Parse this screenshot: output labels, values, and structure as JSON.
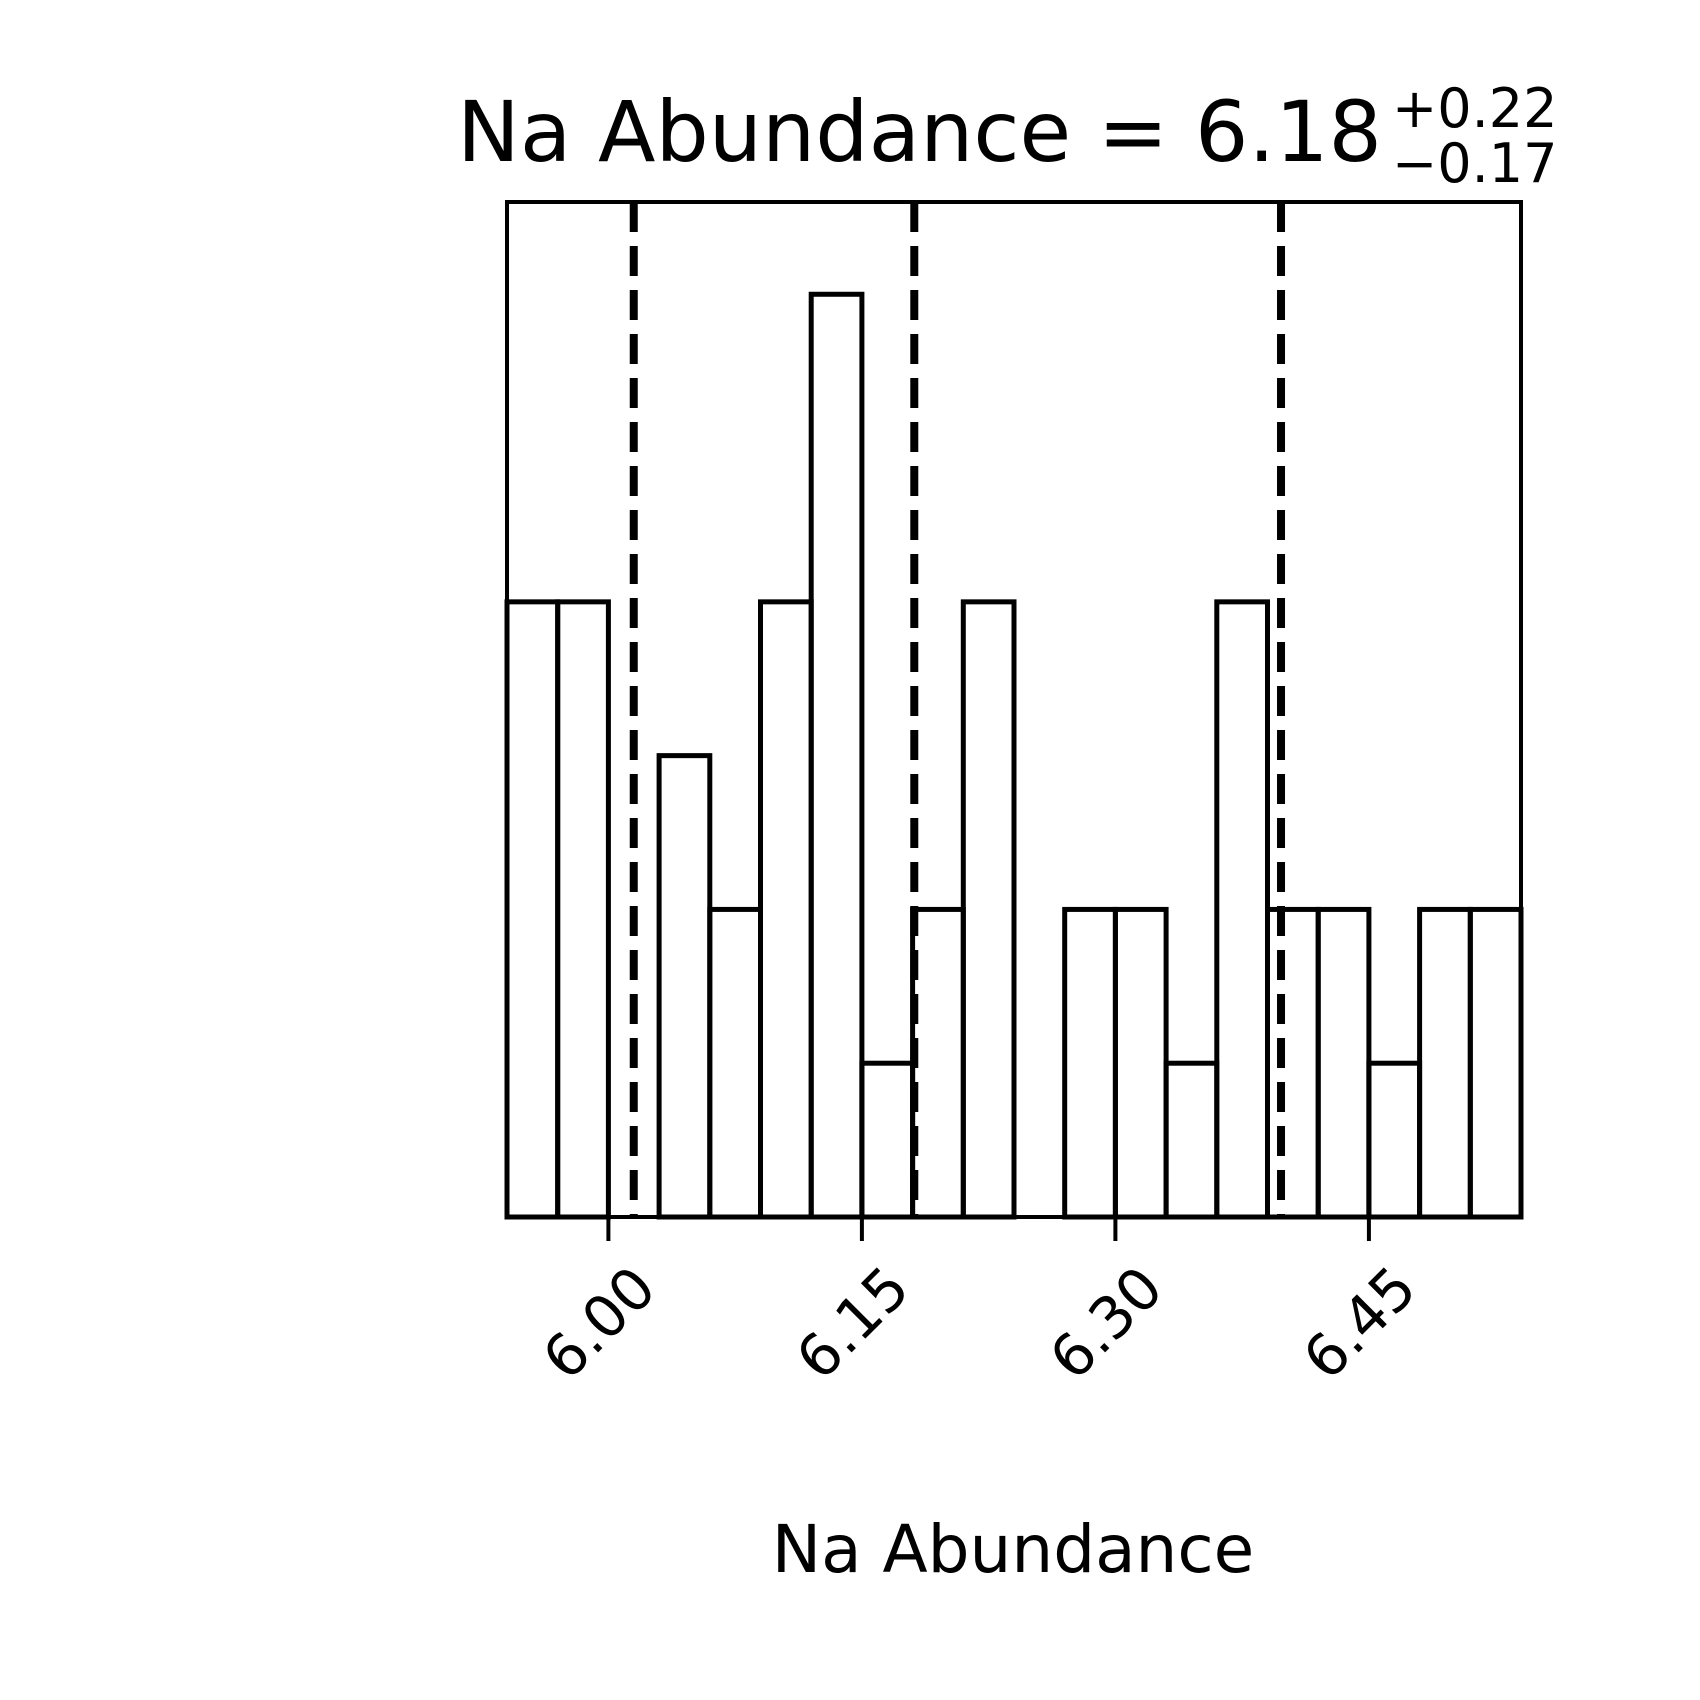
{
  "chart_data": {
    "type": "histogram",
    "title": {
      "main": "Na Abundance = 6.18",
      "upper": "+0.22",
      "lower": "−0.17"
    },
    "xlabel": "Na Abundance",
    "ylabel": "",
    "xlim": [
      5.94,
      6.54
    ],
    "ylim": [
      0,
      6.6
    ],
    "x_ticks": [
      6.0,
      6.15,
      6.3,
      6.45
    ],
    "x_tick_labels": [
      "6.00",
      "6.15",
      "6.30",
      "6.45"
    ],
    "y_ticks_shown": false,
    "bins": {
      "edges": [
        5.94,
        5.97,
        6.0,
        6.03,
        6.06,
        6.09,
        6.12,
        6.15,
        6.18,
        6.21,
        6.24,
        6.27,
        6.3,
        6.33,
        6.36,
        6.39,
        6.42,
        6.45,
        6.48,
        6.51,
        6.54
      ],
      "counts": [
        4,
        4,
        0,
        3,
        2,
        4,
        6,
        1,
        2,
        4,
        0,
        2,
        2,
        1,
        4,
        2,
        2,
        1,
        2,
        2
      ]
    },
    "quantile_lines": [
      6.015,
      6.181,
      6.398
    ],
    "line_style": {
      "histogram": "solid",
      "quantiles": "dashed"
    },
    "color": "#000000"
  }
}
